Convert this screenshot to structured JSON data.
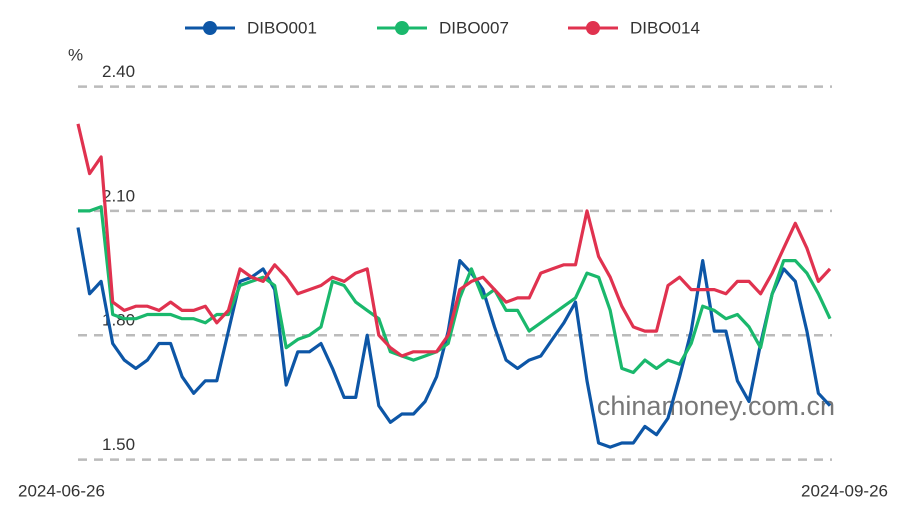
{
  "chart_data": {
    "type": "line",
    "unit_label": "%",
    "watermark": "chinamoney.com.cn",
    "categories": [
      "2024-06-26",
      null,
      null,
      null,
      null,
      null,
      null,
      null,
      null,
      null,
      null,
      null,
      null,
      null,
      null,
      null,
      null,
      null,
      null,
      null,
      null,
      null,
      null,
      null,
      null,
      null,
      null,
      null,
      null,
      null,
      null,
      null,
      null,
      null,
      null,
      null,
      null,
      null,
      null,
      null,
      null,
      null,
      null,
      null,
      null,
      null,
      null,
      null,
      null,
      null,
      null,
      null,
      null,
      null,
      null,
      null,
      null,
      null,
      null,
      null,
      null,
      null,
      null,
      null,
      null,
      "2024-09-26"
    ],
    "series": [
      {
        "name": "DIBO001",
        "color": "#0d56a6",
        "values": [
          2.06,
          1.9,
          1.93,
          1.78,
          1.74,
          1.72,
          1.74,
          1.78,
          1.78,
          1.7,
          1.66,
          1.69,
          1.69,
          1.81,
          1.93,
          1.94,
          1.96,
          1.91,
          1.68,
          1.76,
          1.76,
          1.78,
          1.72,
          1.65,
          1.65,
          1.8,
          1.63,
          1.59,
          1.61,
          1.61,
          1.64,
          1.7,
          1.81,
          1.98,
          1.95,
          1.91,
          1.82,
          1.74,
          1.72,
          1.74,
          1.75,
          1.79,
          1.83,
          1.88,
          1.69,
          1.54,
          1.53,
          1.54,
          1.54,
          1.58,
          1.56,
          1.6,
          1.7,
          1.81,
          1.98,
          1.81,
          1.81,
          1.69,
          1.64,
          1.78,
          1.9,
          1.96,
          1.93,
          1.81,
          1.66,
          1.63
        ]
      },
      {
        "name": "DIBO007",
        "color": "#1ab86c",
        "values": [
          2.1,
          2.1,
          2.11,
          1.85,
          1.84,
          1.84,
          1.85,
          1.85,
          1.85,
          1.84,
          1.84,
          1.83,
          1.85,
          1.85,
          1.92,
          1.93,
          1.94,
          1.92,
          1.77,
          1.79,
          1.8,
          1.82,
          1.93,
          1.92,
          1.88,
          1.86,
          1.84,
          1.76,
          1.75,
          1.74,
          1.75,
          1.76,
          1.78,
          1.89,
          1.96,
          1.89,
          1.91,
          1.86,
          1.86,
          1.81,
          1.83,
          1.85,
          1.87,
          1.89,
          1.95,
          1.94,
          1.86,
          1.72,
          1.71,
          1.74,
          1.72,
          1.74,
          1.73,
          1.78,
          1.87,
          1.86,
          1.84,
          1.85,
          1.82,
          1.77,
          1.9,
          1.98,
          1.98,
          1.95,
          1.9,
          1.84
        ]
      },
      {
        "name": "DIBO014",
        "color": "#e0324f",
        "values": [
          2.31,
          2.19,
          2.23,
          1.88,
          1.86,
          1.87,
          1.87,
          1.86,
          1.88,
          1.86,
          1.86,
          1.87,
          1.83,
          1.86,
          1.96,
          1.94,
          1.93,
          1.97,
          1.94,
          1.9,
          1.91,
          1.92,
          1.94,
          1.93,
          1.95,
          1.96,
          1.8,
          1.77,
          1.75,
          1.76,
          1.76,
          1.76,
          1.8,
          1.91,
          1.93,
          1.94,
          1.91,
          1.88,
          1.89,
          1.89,
          1.95,
          1.96,
          1.97,
          1.97,
          2.1,
          1.99,
          1.94,
          1.87,
          1.82,
          1.81,
          1.81,
          1.92,
          1.94,
          1.91,
          1.91,
          1.91,
          1.9,
          1.93,
          1.93,
          1.9,
          1.95,
          2.01,
          2.07,
          2.01,
          1.93,
          1.96
        ]
      }
    ],
    "ylim": [
      1.47,
      2.44
    ],
    "yticks": [
      {
        "value": 1.5,
        "label": "1.50"
      },
      {
        "value": 1.8,
        "label": "1.80"
      },
      {
        "value": 2.1,
        "label": "2.10"
      },
      {
        "value": 2.4,
        "label": "2.40"
      }
    ],
    "grid": true,
    "legend": "top"
  }
}
